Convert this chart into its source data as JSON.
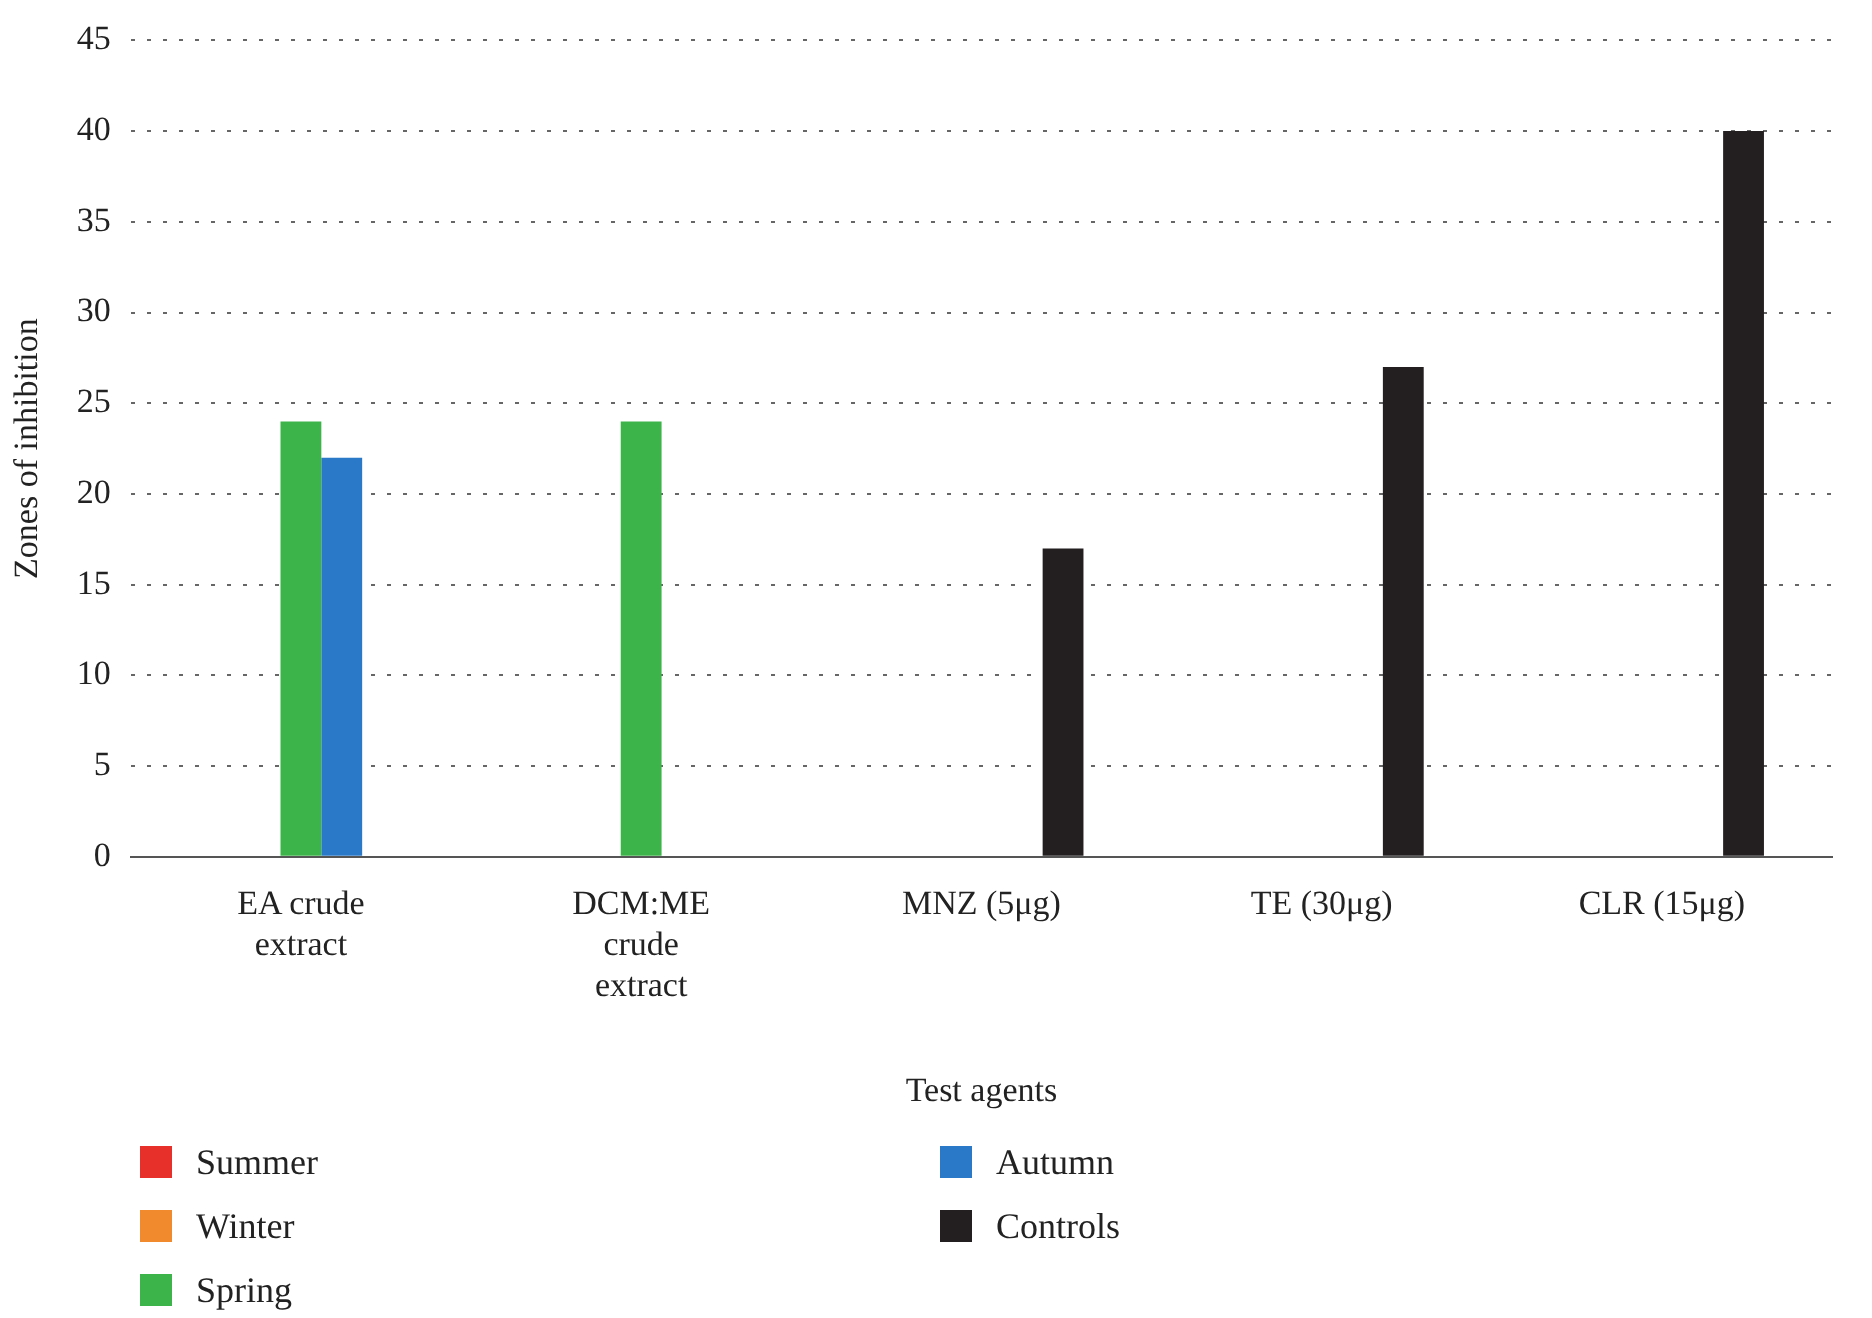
{
  "chart_data": {
    "type": "bar",
    "xlabel": "Test agents",
    "ylabel": "Zones of inhibition",
    "categories": [
      "EA crude extract",
      "DCM:ME crude extract",
      "MNZ (5μg)",
      "TE (30μg)",
      "CLR (15μg)"
    ],
    "series": [
      {
        "name": "Summer",
        "color": "#e8302a",
        "values": [
          null,
          null,
          null,
          null,
          null
        ]
      },
      {
        "name": "Winter",
        "color": "#f08a2c",
        "values": [
          null,
          null,
          null,
          null,
          null
        ]
      },
      {
        "name": "Spring",
        "color": "#3cb44a",
        "values": [
          24,
          24,
          null,
          null,
          null
        ]
      },
      {
        "name": "Autumn",
        "color": "#2a78c8",
        "values": [
          22,
          null,
          null,
          null,
          null
        ]
      },
      {
        "name": "Controls",
        "color": "#231f20",
        "values": [
          null,
          null,
          17,
          27,
          40
        ]
      }
    ],
    "ylim": [
      0,
      45
    ],
    "yticks": [
      0,
      5,
      10,
      15,
      20,
      25,
      30,
      35,
      40,
      45
    ],
    "grid": "y",
    "legend": "bottom"
  }
}
